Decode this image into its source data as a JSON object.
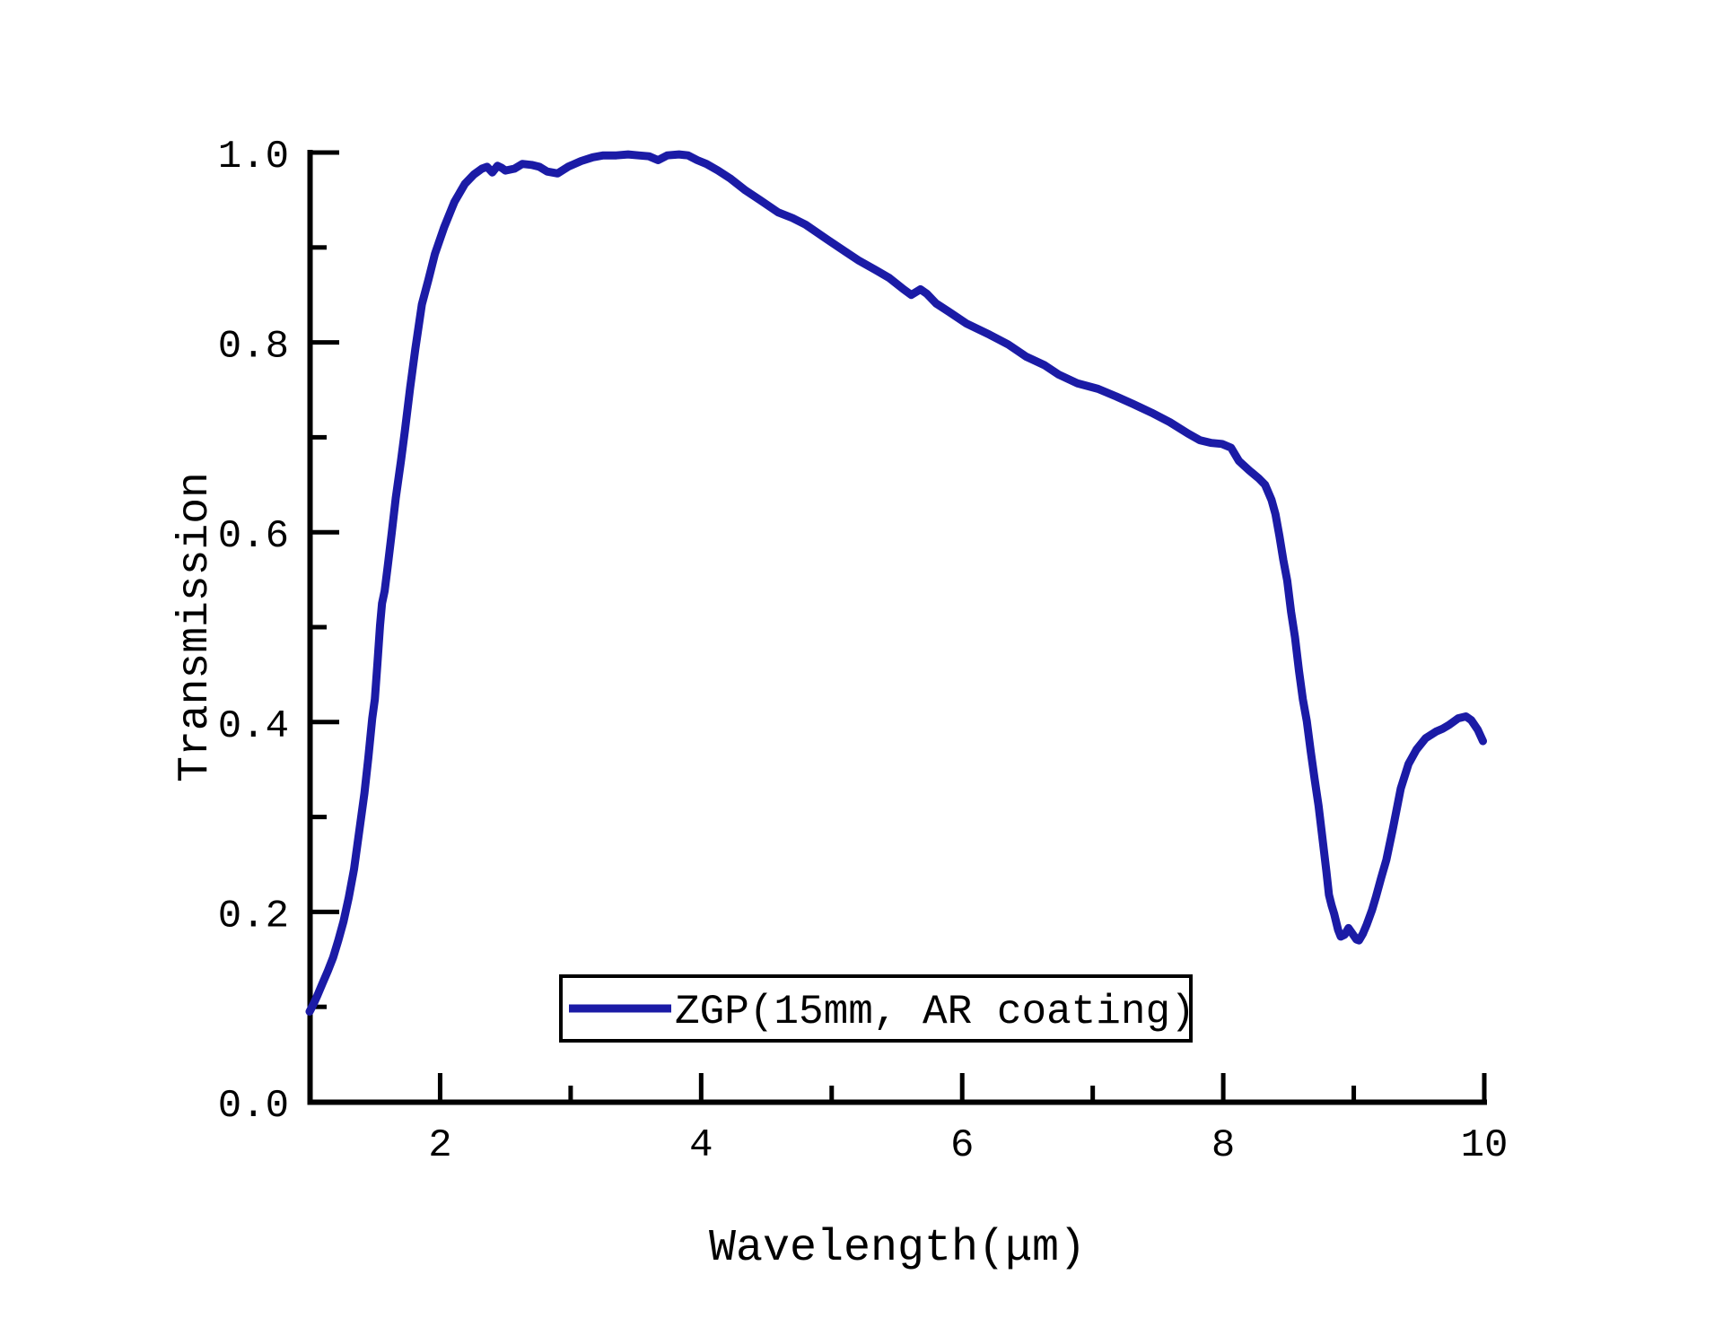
{
  "page": {
    "background": "#ffffff",
    "description": "Transmission spectrum plot of a ZGP crystal sample"
  },
  "colors": {
    "curve": "#1b1ba6",
    "axis": "#000000",
    "text": "#000000",
    "legend_border": "#000000",
    "background": "#ffffff"
  },
  "axis_titles": {
    "x": "Wavelength(μm)",
    "y": "Transmission"
  },
  "legend": {
    "label": "ZGP(15mm, AR coating)"
  },
  "chart_data": {
    "type": "line",
    "title": "",
    "xlabel": "Wavelength(μm)",
    "ylabel": "Transmission",
    "xlim": [
      1,
      10
    ],
    "ylim": [
      0.0,
      1.0
    ],
    "grid": false,
    "x_major_ticks": [
      2,
      4,
      6,
      8,
      10
    ],
    "x_minor_ticks": [
      3,
      5,
      7,
      9
    ],
    "y_major_ticks": [
      0.0,
      0.2,
      0.4,
      0.6,
      0.8,
      1.0
    ],
    "y_major_tick_labels": [
      "0.0",
      "0.2",
      "0.4",
      "0.6",
      "0.8",
      "1.0"
    ],
    "y_minor_ticks": [
      0.1,
      0.3,
      0.5,
      0.7,
      0.9
    ],
    "legend_position": "inside-bottom-center",
    "series": [
      {
        "name": "ZGP(15mm, AR coating)",
        "color": "#1b1ba6",
        "points": [
          [
            1.0,
            0.095
          ],
          [
            1.03,
            0.103
          ],
          [
            1.06,
            0.112
          ],
          [
            1.1,
            0.125
          ],
          [
            1.14,
            0.138
          ],
          [
            1.18,
            0.152
          ],
          [
            1.22,
            0.17
          ],
          [
            1.26,
            0.19
          ],
          [
            1.3,
            0.215
          ],
          [
            1.34,
            0.245
          ],
          [
            1.38,
            0.285
          ],
          [
            1.42,
            0.325
          ],
          [
            1.45,
            0.362
          ],
          [
            1.48,
            0.404
          ],
          [
            1.5,
            0.424
          ],
          [
            1.52,
            0.462
          ],
          [
            1.54,
            0.502
          ],
          [
            1.555,
            0.525
          ],
          [
            1.575,
            0.538
          ],
          [
            1.6,
            0.566
          ],
          [
            1.63,
            0.6
          ],
          [
            1.66,
            0.636
          ],
          [
            1.7,
            0.675
          ],
          [
            1.73,
            0.707
          ],
          [
            1.77,
            0.752
          ],
          [
            1.81,
            0.793
          ],
          [
            1.86,
            0.84
          ],
          [
            1.91,
            0.866
          ],
          [
            1.96,
            0.893
          ],
          [
            2.03,
            0.921
          ],
          [
            2.11,
            0.948
          ],
          [
            2.19,
            0.967
          ],
          [
            2.26,
            0.977
          ],
          [
            2.32,
            0.983
          ],
          [
            2.36,
            0.985
          ],
          [
            2.4,
            0.979
          ],
          [
            2.44,
            0.986
          ],
          [
            2.47,
            0.984
          ],
          [
            2.5,
            0.981
          ],
          [
            2.57,
            0.983
          ],
          [
            2.63,
            0.988
          ],
          [
            2.7,
            0.987
          ],
          [
            2.76,
            0.985
          ],
          [
            2.82,
            0.98
          ],
          [
            2.9,
            0.978
          ],
          [
            2.98,
            0.985
          ],
          [
            3.08,
            0.991
          ],
          [
            3.17,
            0.995
          ],
          [
            3.25,
            0.997
          ],
          [
            3.35,
            0.997
          ],
          [
            3.44,
            0.998
          ],
          [
            3.52,
            0.997
          ],
          [
            3.6,
            0.996
          ],
          [
            3.67,
            0.992
          ],
          [
            3.74,
            0.997
          ],
          [
            3.83,
            0.998
          ],
          [
            3.9,
            0.997
          ],
          [
            3.97,
            0.992
          ],
          [
            4.04,
            0.988
          ],
          [
            4.13,
            0.981
          ],
          [
            4.22,
            0.973
          ],
          [
            4.34,
            0.96
          ],
          [
            4.45,
            0.95
          ],
          [
            4.59,
            0.937
          ],
          [
            4.7,
            0.931
          ],
          [
            4.8,
            0.924
          ],
          [
            4.97,
            0.908
          ],
          [
            5.1,
            0.896
          ],
          [
            5.21,
            0.886
          ],
          [
            5.34,
            0.876
          ],
          [
            5.44,
            0.868
          ],
          [
            5.55,
            0.856
          ],
          [
            5.61,
            0.85
          ],
          [
            5.68,
            0.856
          ],
          [
            5.73,
            0.851
          ],
          [
            5.8,
            0.841
          ],
          [
            5.9,
            0.832
          ],
          [
            6.03,
            0.82
          ],
          [
            6.21,
            0.808
          ],
          [
            6.35,
            0.798
          ],
          [
            6.49,
            0.785
          ],
          [
            6.63,
            0.776
          ],
          [
            6.74,
            0.766
          ],
          [
            6.88,
            0.757
          ],
          [
            7.04,
            0.751
          ],
          [
            7.18,
            0.743
          ],
          [
            7.31,
            0.735
          ],
          [
            7.45,
            0.726
          ],
          [
            7.59,
            0.716
          ],
          [
            7.73,
            0.704
          ],
          [
            7.82,
            0.697
          ],
          [
            7.91,
            0.694
          ],
          [
            7.99,
            0.693
          ],
          [
            8.06,
            0.689
          ],
          [
            8.12,
            0.675
          ],
          [
            8.2,
            0.665
          ],
          [
            8.27,
            0.657
          ],
          [
            8.32,
            0.65
          ],
          [
            8.37,
            0.634
          ],
          [
            8.4,
            0.619
          ],
          [
            8.43,
            0.596
          ],
          [
            8.46,
            0.571
          ],
          [
            8.49,
            0.549
          ],
          [
            8.52,
            0.516
          ],
          [
            8.55,
            0.489
          ],
          [
            8.58,
            0.454
          ],
          [
            8.61,
            0.424
          ],
          [
            8.64,
            0.401
          ],
          [
            8.67,
            0.369
          ],
          [
            8.7,
            0.34
          ],
          [
            8.73,
            0.312
          ],
          [
            8.76,
            0.278
          ],
          [
            8.79,
            0.243
          ],
          [
            8.81,
            0.218
          ],
          [
            8.83,
            0.207
          ],
          [
            8.85,
            0.198
          ],
          [
            8.88,
            0.181
          ],
          [
            8.9,
            0.174
          ],
          [
            8.93,
            0.176
          ],
          [
            8.96,
            0.183
          ],
          [
            8.99,
            0.177
          ],
          [
            9.02,
            0.171
          ],
          [
            9.04,
            0.17
          ],
          [
            9.07,
            0.177
          ],
          [
            9.1,
            0.187
          ],
          [
            9.14,
            0.202
          ],
          [
            9.17,
            0.216
          ],
          [
            9.21,
            0.236
          ],
          [
            9.25,
            0.255
          ],
          [
            9.3,
            0.288
          ],
          [
            9.36,
            0.33
          ],
          [
            9.42,
            0.356
          ],
          [
            9.48,
            0.371
          ],
          [
            9.55,
            0.383
          ],
          [
            9.63,
            0.39
          ],
          [
            9.68,
            0.393
          ],
          [
            9.73,
            0.397
          ],
          [
            9.8,
            0.404
          ],
          [
            9.86,
            0.406
          ],
          [
            9.9,
            0.402
          ],
          [
            9.95,
            0.392
          ],
          [
            9.99,
            0.38
          ]
        ]
      }
    ]
  }
}
